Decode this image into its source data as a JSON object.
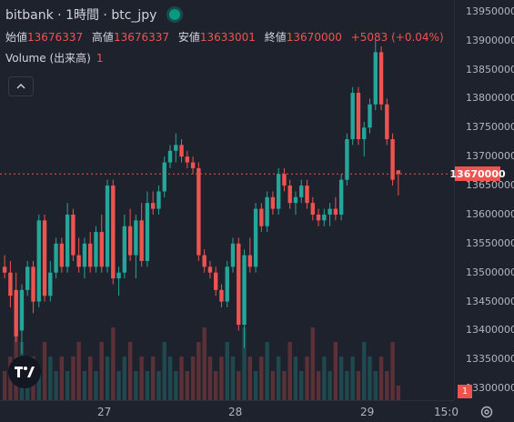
{
  "header": {
    "title": "bitbank · 1時間 · btc_jpy"
  },
  "ohlc": [
    {
      "label": "始値",
      "value": "13676337"
    },
    {
      "label": "高値",
      "value": "13676337"
    },
    {
      "label": "安値",
      "value": "13633001"
    },
    {
      "label": "終値",
      "value": "13670000"
    }
  ],
  "change": "+5083 (+0.04%)",
  "volume": {
    "label": "Volume (出来高)",
    "value": "1"
  },
  "price_axis": [
    "13950000",
    "13900000",
    "13850000",
    "13800000",
    "13750000",
    "13700000",
    "13650000",
    "13600000",
    "13550000",
    "13500000",
    "13450000",
    "13400000",
    "13350000",
    "13300000"
  ],
  "current_price": "13670000",
  "volume_badge": "1",
  "time_axis": [
    "27",
    "28",
    "29",
    "15:0"
  ],
  "colors": {
    "up": "#26a69a",
    "down": "#ef5350",
    "bg": "#1e222d"
  },
  "icons": {
    "logo": "tradingview-logo",
    "settings": "gear-icon",
    "collapse": "chevron-up-icon"
  },
  "chart_data": {
    "type": "candlestick",
    "ylim": [
      13280000,
      13970000
    ],
    "last_price": 13670000,
    "candles": [
      [
        13510000,
        13530000,
        13490000,
        13500000
      ],
      [
        13500000,
        13520000,
        13440000,
        13460000
      ],
      [
        13470000,
        13500000,
        13380000,
        13390000
      ],
      [
        13400000,
        13480000,
        13360000,
        13470000
      ],
      [
        13470000,
        13520000,
        13460000,
        13510000
      ],
      [
        13510000,
        13520000,
        13430000,
        13450000
      ],
      [
        13450000,
        13600000,
        13440000,
        13590000
      ],
      [
        13590000,
        13600000,
        13450000,
        13460000
      ],
      [
        13460000,
        13520000,
        13450000,
        13500000
      ],
      [
        13500000,
        13560000,
        13490000,
        13550000
      ],
      [
        13550000,
        13560000,
        13500000,
        13510000
      ],
      [
        13510000,
        13620000,
        13500000,
        13600000
      ],
      [
        13600000,
        13610000,
        13520000,
        13530000
      ],
      [
        13530000,
        13560000,
        13500000,
        13510000
      ],
      [
        13510000,
        13560000,
        13490000,
        13550000
      ],
      [
        13550000,
        13570000,
        13500000,
        13510000
      ],
      [
        13510000,
        13580000,
        13500000,
        13570000
      ],
      [
        13570000,
        13600000,
        13500000,
        13510000
      ],
      [
        13510000,
        13660000,
        13500000,
        13650000
      ],
      [
        13650000,
        13660000,
        13480000,
        13490000
      ],
      [
        13490000,
        13510000,
        13460000,
        13500000
      ],
      [
        13500000,
        13600000,
        13490000,
        13580000
      ],
      [
        13580000,
        13610000,
        13520000,
        13530000
      ],
      [
        13530000,
        13600000,
        13490000,
        13590000
      ],
      [
        13590000,
        13620000,
        13510000,
        13520000
      ],
      [
        13520000,
        13640000,
        13510000,
        13620000
      ],
      [
        13620000,
        13640000,
        13600000,
        13610000
      ],
      [
        13610000,
        13650000,
        13600000,
        13640000
      ],
      [
        13640000,
        13700000,
        13630000,
        13690000
      ],
      [
        13690000,
        13720000,
        13680000,
        13710000
      ],
      [
        13710000,
        13740000,
        13690000,
        13720000
      ],
      [
        13720000,
        13730000,
        13690000,
        13700000
      ],
      [
        13700000,
        13710000,
        13680000,
        13690000
      ],
      [
        13690000,
        13700000,
        13670000,
        13680000
      ],
      [
        13680000,
        13690000,
        13520000,
        13530000
      ],
      [
        13530000,
        13540000,
        13500000,
        13510000
      ],
      [
        13510000,
        13520000,
        13490000,
        13500000
      ],
      [
        13500000,
        13510000,
        13460000,
        13470000
      ],
      [
        13470000,
        13480000,
        13440000,
        13450000
      ],
      [
        13450000,
        13520000,
        13440000,
        13510000
      ],
      [
        13510000,
        13560000,
        13500000,
        13550000
      ],
      [
        13550000,
        13560000,
        13400000,
        13410000
      ],
      [
        13410000,
        13540000,
        13370000,
        13530000
      ],
      [
        13530000,
        13560000,
        13500000,
        13510000
      ],
      [
        13510000,
        13620000,
        13500000,
        13610000
      ],
      [
        13610000,
        13620000,
        13570000,
        13580000
      ],
      [
        13580000,
        13640000,
        13570000,
        13630000
      ],
      [
        13630000,
        13640000,
        13600000,
        13610000
      ],
      [
        13610000,
        13680000,
        13600000,
        13670000
      ],
      [
        13670000,
        13680000,
        13640000,
        13650000
      ],
      [
        13650000,
        13660000,
        13610000,
        13620000
      ],
      [
        13620000,
        13640000,
        13600000,
        13630000
      ],
      [
        13630000,
        13660000,
        13620000,
        13650000
      ],
      [
        13650000,
        13660000,
        13610000,
        13620000
      ],
      [
        13620000,
        13630000,
        13590000,
        13600000
      ],
      [
        13600000,
        13610000,
        13580000,
        13590000
      ],
      [
        13590000,
        13610000,
        13580000,
        13600000
      ],
      [
        13600000,
        13620000,
        13580000,
        13610000
      ],
      [
        13610000,
        13630000,
        13590000,
        13600000
      ],
      [
        13600000,
        13670000,
        13590000,
        13660000
      ],
      [
        13660000,
        13740000,
        13650000,
        13730000
      ],
      [
        13730000,
        13820000,
        13720000,
        13810000
      ],
      [
        13810000,
        13820000,
        13720000,
        13730000
      ],
      [
        13730000,
        13760000,
        13700000,
        13750000
      ],
      [
        13750000,
        13800000,
        13740000,
        13790000
      ],
      [
        13790000,
        13900000,
        13780000,
        13880000
      ],
      [
        13880000,
        13890000,
        13780000,
        13790000
      ],
      [
        13790000,
        13800000,
        13720000,
        13730000
      ],
      [
        13730000,
        13740000,
        13650000,
        13660000
      ],
      [
        13676337,
        13676337,
        13633001,
        13670000
      ]
    ],
    "volumes": [
      2,
      3,
      5,
      4,
      2,
      3,
      2,
      4,
      3,
      2,
      3,
      2,
      3,
      4,
      2,
      3,
      2,
      4,
      3,
      5,
      2,
      3,
      4,
      2,
      3,
      2,
      3,
      2,
      4,
      3,
      2,
      3,
      2,
      3,
      4,
      5,
      3,
      2,
      3,
      4,
      3,
      2,
      5,
      3,
      2,
      3,
      4,
      2,
      3,
      2,
      4,
      3,
      2,
      3,
      5,
      2,
      3,
      2,
      4,
      3,
      2,
      3,
      2,
      4,
      3,
      2,
      3,
      2,
      4,
      1
    ]
  }
}
